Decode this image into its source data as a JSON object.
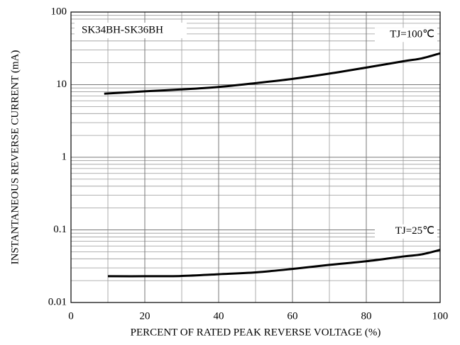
{
  "chart_data": {
    "type": "line",
    "annotation": "SK34BH-SK36BH",
    "xlabel": "PERCENT OF RATED PEAK REVERSE VOLTAGE (%)",
    "ylabel": "INSTANTANEOUS REVERSE CURRENT (mA)",
    "yscale": "log",
    "grid": true,
    "xlim": [
      0,
      100
    ],
    "xticks": [
      0,
      20,
      40,
      60,
      80,
      100
    ],
    "ylim": [
      0.01,
      100
    ],
    "yticks": [
      0.01,
      0.1,
      1,
      10,
      100
    ],
    "series": [
      {
        "name": "TJ=100℃",
        "color": "#000000",
        "x": [
          9,
          20,
          30,
          40,
          50,
          60,
          70,
          80,
          90,
          95,
          100
        ],
        "values": [
          7.5,
          8.1,
          8.6,
          9.3,
          10.5,
          12,
          14.2,
          17.2,
          21,
          23,
          27
        ]
      },
      {
        "name": "TJ=25℃",
        "color": "#000000",
        "x": [
          10,
          20,
          30,
          40,
          50,
          60,
          70,
          80,
          90,
          95,
          100
        ],
        "values": [
          0.023,
          0.023,
          0.0232,
          0.0245,
          0.026,
          0.029,
          0.033,
          0.037,
          0.043,
          0.046,
          0.053
        ]
      }
    ]
  }
}
